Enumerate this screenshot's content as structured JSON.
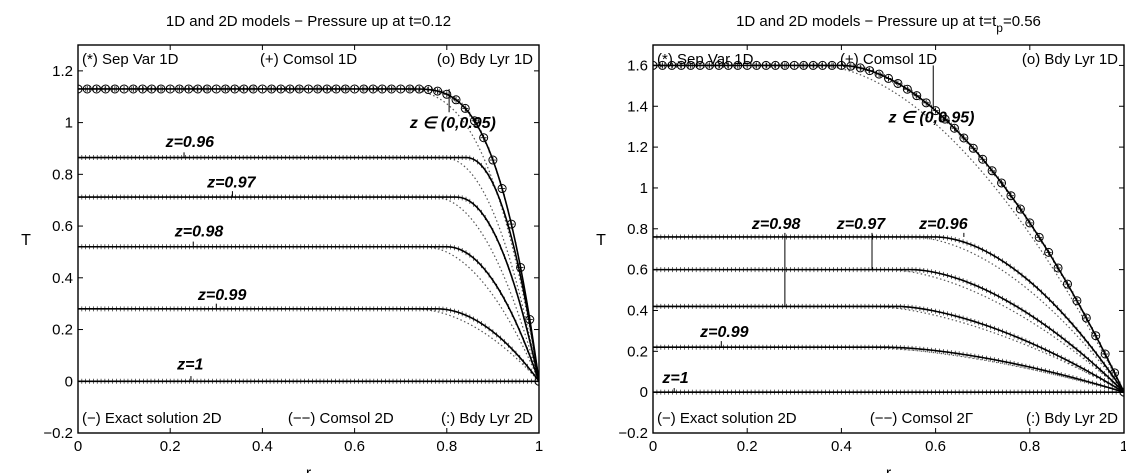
{
  "chart_data": [
    {
      "type": "line",
      "title": "1D and 2D models − Pressure up at t=0.12",
      "title_parts": [],
      "xlabel": "r",
      "ylabel": "T",
      "xlim": [
        0,
        1
      ],
      "ylim": [
        -0.2,
        1.3
      ],
      "xticks": [
        "0",
        "0.2",
        "0.4",
        "0.6",
        "0.8",
        "1"
      ],
      "xtick_values": [
        0,
        0.2,
        0.4,
        0.6,
        0.8,
        1
      ],
      "yticks": [
        "−0.2",
        "0",
        "0.2",
        "0.4",
        "0.6",
        "0.8",
        "1",
        "1.2"
      ],
      "ytick_values": [
        -0.2,
        0,
        0.2,
        0.4,
        0.6,
        0.8,
        1,
        1.2
      ],
      "grid": false,
      "legend_top": [
        "(*) Sep Var 1D",
        "(+) Comsol 1D",
        "(o) Bdy Lyr 1D"
      ],
      "legend_bottom": [
        "(−) Exact solution 2D",
        "(−−) Comsol 2D",
        "(:) Bdy Lyr 2D"
      ],
      "series": [
        {
          "plateau": 1.13,
          "r_knee": 0.72,
          "power": 3.2,
          "markers": true
        },
        {
          "plateau": 0.865,
          "r_knee": 0.84,
          "power": 2.2,
          "markers": false
        },
        {
          "plateau": 0.712,
          "r_knee": 0.82,
          "power": 2.1,
          "markers": false
        },
        {
          "plateau": 0.52,
          "r_knee": 0.8,
          "power": 2.0,
          "markers": false
        },
        {
          "plateau": 0.28,
          "r_knee": 0.78,
          "power": 1.9,
          "markers": false
        },
        {
          "plateau": 0.0,
          "r_knee": 0.9,
          "power": 2.0,
          "markers": false
        }
      ],
      "annotations": [
        {
          "text": "z=0.96",
          "x": 0.19,
          "y": 0.905,
          "lx": 0.23,
          "ly0": 0.885,
          "ly1": 0.865
        },
        {
          "text": "z=0.97",
          "x": 0.28,
          "y": 0.75,
          "lx": 0.335,
          "ly0": 0.735,
          "ly1": 0.712
        },
        {
          "text": "z=0.98",
          "x": 0.21,
          "y": 0.56,
          "lx": 0.25,
          "ly0": 0.54,
          "ly1": 0.52
        },
        {
          "text": "z=0.99",
          "x": 0.26,
          "y": 0.315,
          "lx": 0.3,
          "ly0": 0.3,
          "ly1": 0.28
        },
        {
          "text": "z=1",
          "x": 0.215,
          "y": 0.045,
          "lx": 0.245,
          "ly0": 0.02,
          "ly1": 0.0
        },
        {
          "text": "z ∈ (0,0.95)",
          "x": 0.72,
          "y": 0.98,
          "lx": 0.805,
          "ly0": 1.13,
          "ly1": 1.04
        }
      ]
    },
    {
      "type": "line",
      "title": "1D and 2D models − Pressure up at t=t",
      "title_parts": [
        "p",
        "=0.56"
      ],
      "xlabel": "r",
      "ylabel": "T",
      "xlim": [
        0,
        1
      ],
      "ylim": [
        -0.2,
        1.7
      ],
      "xticks": [
        "0",
        "0.2",
        "0.4",
        "0.6",
        "0.8",
        "1"
      ],
      "xtick_values": [
        0,
        0.2,
        0.4,
        0.6,
        0.8,
        1
      ],
      "yticks": [
        "−0.2",
        "0",
        "0.2",
        "0.4",
        "0.6",
        "0.8",
        "1",
        "1.2",
        "1.4",
        "1.6"
      ],
      "ytick_values": [
        -0.2,
        0,
        0.2,
        0.4,
        0.6,
        0.8,
        1,
        1.2,
        1.4,
        1.6
      ],
      "grid": false,
      "legend_top": [
        "(*) Sep Var 1D",
        "(+) Comsol 1D",
        "(o) Bdy Lyr 1D"
      ],
      "legend_bottom": [
        "(−) Exact solution 2D",
        "(−−) Comsol 2Γ",
        "(:) Bdy Lyr 2D"
      ],
      "series": [
        {
          "plateau": 1.6,
          "r_knee": 0.4,
          "power": 1.8,
          "markers": true
        },
        {
          "plateau": 0.76,
          "r_knee": 0.6,
          "power": 1.8,
          "markers": false
        },
        {
          "plateau": 0.6,
          "r_knee": 0.55,
          "power": 1.7,
          "markers": false
        },
        {
          "plateau": 0.42,
          "r_knee": 0.52,
          "power": 1.6,
          "markers": false
        },
        {
          "plateau": 0.22,
          "r_knee": 0.5,
          "power": 1.6,
          "markers": false
        },
        {
          "plateau": 0.0,
          "r_knee": 0.6,
          "power": 1.6,
          "markers": false
        }
      ],
      "annotations": [
        {
          "text": "z=0.98",
          "x": 0.21,
          "y": 0.8,
          "lx": 0.28,
          "ly0": 0.78,
          "ly1": 0.42
        },
        {
          "text": "z=0.97",
          "x": 0.39,
          "y": 0.8,
          "lx": 0.465,
          "ly0": 0.78,
          "ly1": 0.6
        },
        {
          "text": "z=0.96",
          "x": 0.565,
          "y": 0.8,
          "lx": 0.66,
          "ly0": 0.78,
          "ly1": 0.76
        },
        {
          "text": "z=0.99",
          "x": 0.1,
          "y": 0.27,
          "lx": 0.145,
          "ly0": 0.25,
          "ly1": 0.22
        },
        {
          "text": "z=1",
          "x": 0.02,
          "y": 0.045,
          "lx": 0.045,
          "ly0": 0.02,
          "ly1": 0.0
        },
        {
          "text": "z ∈ (0,0.95)",
          "x": 0.5,
          "y": 1.32,
          "lx": 0.595,
          "ly0": 1.6,
          "ly1": 1.39
        }
      ]
    }
  ]
}
